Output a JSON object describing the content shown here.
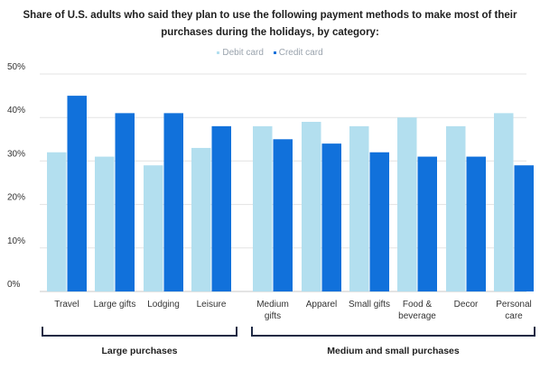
{
  "chart_data": {
    "type": "bar",
    "title": "Share of U.S. adults who said they plan to use the following payment methods to make most of their purchases during the holidays, by category:",
    "categories": [
      [
        "Travel"
      ],
      [
        "Large gifts"
      ],
      [
        "Lodging"
      ],
      [
        "Leisure"
      ],
      [
        "Medium",
        "gifts"
      ],
      [
        "Apparel"
      ],
      [
        "Small gifts"
      ],
      [
        "Food &",
        "beverage"
      ],
      [
        "Decor"
      ],
      [
        "Personal",
        "care"
      ]
    ],
    "series": [
      {
        "name": "Debit card",
        "color": "#b3dfef",
        "values": [
          32,
          31,
          29,
          33,
          38,
          39,
          38,
          40,
          38,
          41
        ]
      },
      {
        "name": "Credit card",
        "color": "#1171db",
        "values": [
          45,
          41,
          41,
          38,
          35,
          34,
          32,
          31,
          31,
          29
        ]
      }
    ],
    "ylim": [
      0,
      50
    ],
    "yticks": [
      "0%",
      "10%",
      "20%",
      "30%",
      "40%",
      "50%"
    ],
    "grid": true,
    "legend_position": "top-center",
    "groups": [
      {
        "label": "Large purchases",
        "categories": [
          0,
          3
        ]
      },
      {
        "label": "Medium and small purchases",
        "categories": [
          4,
          9
        ]
      }
    ]
  }
}
